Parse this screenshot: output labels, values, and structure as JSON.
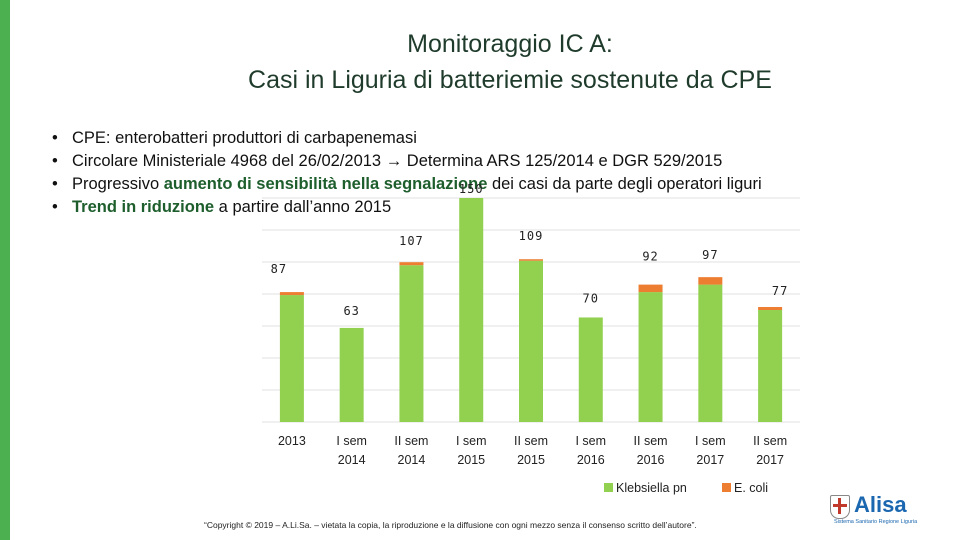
{
  "title_line1": "Monitoraggio IC A:",
  "title_line2": "Casi in Liguria di batteriemie sostenute da CPE",
  "bullets": {
    "b1": "CPE: enterobatteri produttori di carbapenemasi",
    "b2_a": "Circolare Ministeriale 4968 del 26/02/2013 ",
    "b2_arrow": "→",
    "b2_b": " Determina ARS 125/2014 e DGR 529/2015",
    "b3_a": "Progressivo ",
    "b3_hl": "aumento di sensibilità nella segnalazione",
    "b3_b": " dei casi da parte degli operatori liguri",
    "b4_hl": "Trend in riduzione",
    "b4_b": " a partire dall’anno 2015",
    "bullet_char": "•"
  },
  "copyright": "“Copyright © 2019 – A.Li.Sa. – vietata la copia, la riproduzione e la diffusione con ogni mezzo senza il consenso scritto dell’autore”.",
  "logo": {
    "name": "Alisa",
    "sub": "Sistema Sanitario Regione Liguria"
  },
  "colors": {
    "green": "#92d050",
    "orange": "#ed7d31",
    "accent": "#4caf50"
  },
  "chart_data": {
    "type": "bar",
    "stacked": true,
    "categories": [
      [
        "2013"
      ],
      [
        "I sem",
        "2014"
      ],
      [
        "II sem",
        "2014"
      ],
      [
        "I sem",
        "2015"
      ],
      [
        "II sem",
        "2015"
      ],
      [
        "I sem",
        "2016"
      ],
      [
        "II sem",
        "2016"
      ],
      [
        "I sem",
        "2017"
      ],
      [
        "II sem",
        "2017"
      ]
    ],
    "series": [
      {
        "name": "Klebsiella pn",
        "values": [
          85,
          63,
          105,
          150,
          108,
          70,
          87,
          92,
          75
        ]
      },
      {
        "name": "E. coli",
        "values": [
          2,
          0,
          2,
          0,
          1,
          0,
          5,
          5,
          2
        ]
      }
    ],
    "totals": [
      "87",
      "63",
      "107",
      "150",
      "109",
      "70",
      "92",
      "97",
      "77"
    ],
    "ylim": [
      0,
      150
    ],
    "grid": true,
    "legend": "bottom-right"
  }
}
